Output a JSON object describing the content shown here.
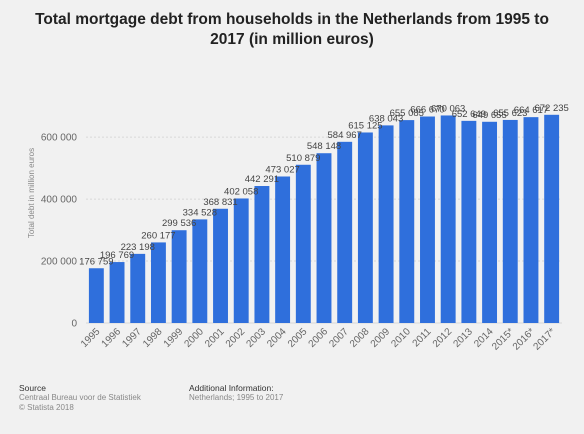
{
  "title": "Total mortgage debt from households in the Netherlands from 1995 to 2017 (in million euros)",
  "chart_data": {
    "type": "bar",
    "title": "Total mortgage debt from households in the Netherlands from 1995 to 2017 (in million euros)",
    "xlabel": "",
    "ylabel": "Total debt in million euros",
    "categories": [
      "1995",
      "1996",
      "1997",
      "1998",
      "1999",
      "2000",
      "2001",
      "2002",
      "2003",
      "2004",
      "2005",
      "2006",
      "2007",
      "2008",
      "2009",
      "2010",
      "2011",
      "2012",
      "2013",
      "2014",
      "2015*",
      "2016*",
      "2017*"
    ],
    "values": [
      176759,
      196769,
      223198,
      260177,
      299536,
      334528,
      368831,
      402058,
      442291,
      473027,
      510879,
      548148,
      584967,
      615125,
      638043,
      655085,
      666670,
      670063,
      652649,
      649655,
      655623,
      664617,
      672235
    ],
    "data_labels": [
      "176 759",
      "196 769",
      "223 198",
      "260 177",
      "299 536",
      "334 528",
      "368 831",
      "402 058",
      "442 291",
      "473 027",
      "510 879",
      "548 148",
      "584 967",
      "615 125",
      "638 043",
      "655 085",
      "666 670",
      "670 063",
      "652 649",
      "649 655",
      "655 623",
      "664 617",
      "672 235"
    ],
    "yticks": [
      0,
      200000,
      400000,
      600000
    ],
    "ytick_labels": [
      "0",
      "200 000",
      "400 000",
      "600 000"
    ],
    "ylim": [
      0,
      720000
    ],
    "grid": true,
    "bar_color": "#2f6fdc"
  },
  "footer": {
    "source_heading": "Source",
    "source_line1": "Centraal Bureau voor de Statistiek",
    "source_line2": "© Statista 2018",
    "info_heading": "Additional Information:",
    "info_line1": "Netherlands; 1995 to 2017"
  }
}
